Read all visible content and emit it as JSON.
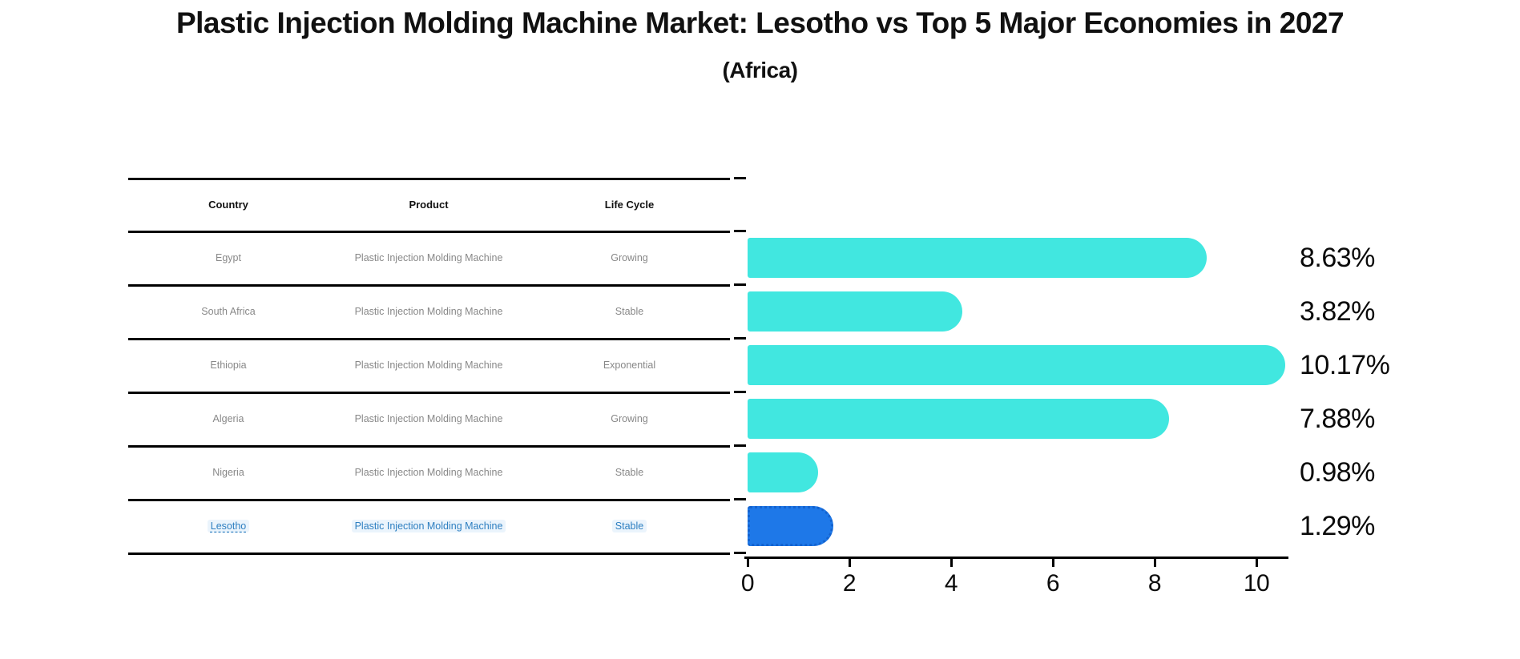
{
  "title": "Plastic Injection Molding Machine Market: Lesotho vs Top 5 Major Economies in 2027",
  "subtitle": "(Africa)",
  "table": {
    "headers": [
      "Country",
      "Product",
      "Life Cycle"
    ],
    "rows": [
      {
        "country": "Egypt",
        "product": "Plastic Injection Molding Machine",
        "life_cycle": "Growing",
        "highlighted": false
      },
      {
        "country": "South Africa",
        "product": "Plastic Injection Molding Machine",
        "life_cycle": "Stable",
        "highlighted": false
      },
      {
        "country": "Ethiopia",
        "product": "Plastic Injection Molding Machine",
        "life_cycle": "Exponential",
        "highlighted": false
      },
      {
        "country": "Algeria",
        "product": "Plastic Injection Molding Machine",
        "life_cycle": "Growing",
        "highlighted": false
      },
      {
        "country": "Nigeria",
        "product": "Plastic Injection Molding Machine",
        "life_cycle": "Stable",
        "highlighted": false
      },
      {
        "country": "Lesotho",
        "product": "Plastic Injection Molding Machine",
        "life_cycle": "Stable",
        "highlighted": true
      }
    ]
  },
  "chart_data": {
    "type": "bar",
    "orientation": "horizontal",
    "title": "Plastic Injection Molding Machine Market: Lesotho vs Top 5 Major Economies in 2027 (Africa)",
    "categories": [
      "Egypt",
      "South Africa",
      "Ethiopia",
      "Algeria",
      "Nigeria",
      "Lesotho"
    ],
    "values": [
      8.63,
      3.82,
      10.17,
      7.88,
      0.98,
      1.29
    ],
    "value_labels": [
      "8.63%",
      "3.82%",
      "10.17%",
      "7.88%",
      "0.98%",
      "1.29%"
    ],
    "xlabel": "",
    "ylabel": "",
    "xticks": [
      "0",
      "2",
      "4",
      "6",
      "8",
      "10"
    ],
    "xlim": [
      0,
      10.63
    ],
    "grid": false,
    "legend": false,
    "bar_color": "#41e7e0",
    "highlight_bar_color": "#1e78e8",
    "highlight_index": 5,
    "bar_cap_extension": 0.4
  },
  "colors": {
    "background": "#ffffff",
    "table_line": "#000000",
    "header_text": "#111111",
    "cell_text": "#888888",
    "highlight_text": "#2e7fc1",
    "axis": "#000000",
    "value_label_text": "#0a0a0a"
  }
}
